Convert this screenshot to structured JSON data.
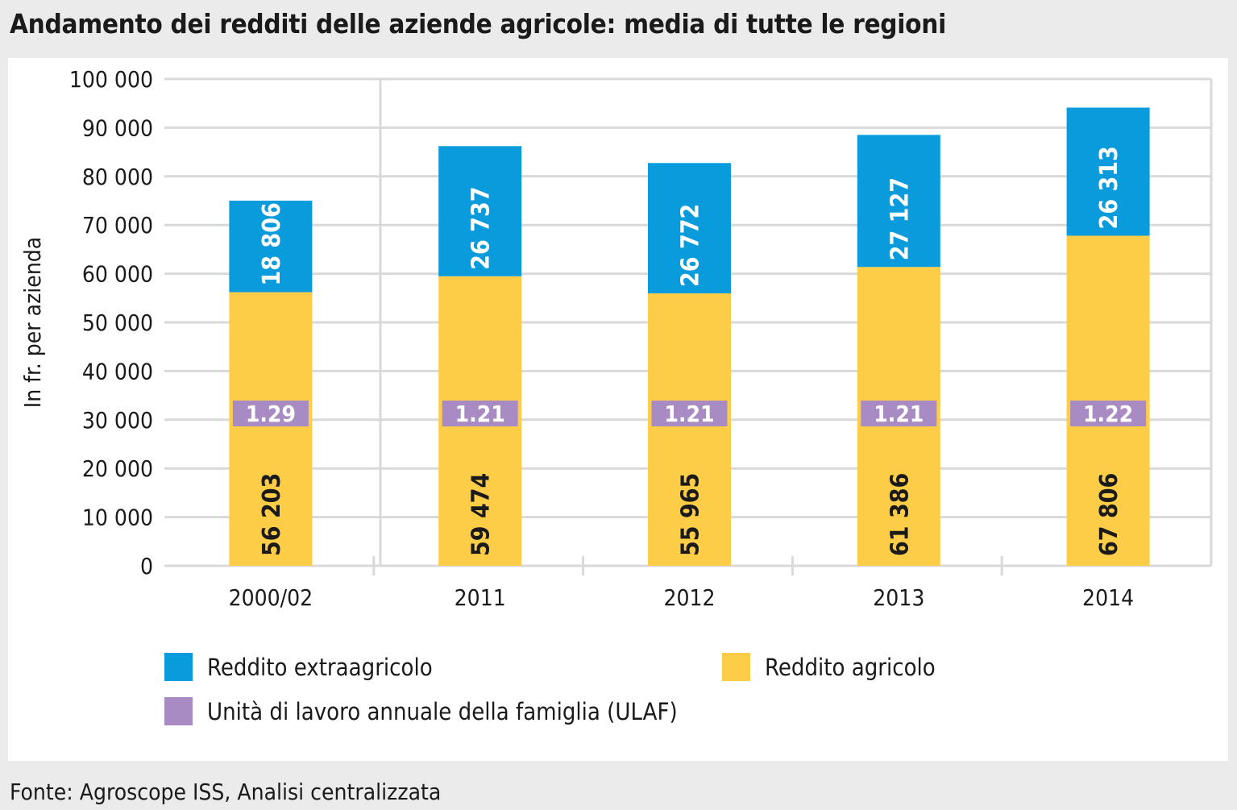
{
  "title": "Andamento dei redditi delle aziende agricole: media di tutte le regioni",
  "source": "Fonte: Agroscope ISS, Analisi centralizzata",
  "chart_data": {
    "type": "bar",
    "stacked": true,
    "title": "Andamento dei redditi delle aziende agricole: media di tutte le regioni",
    "xlabel": "",
    "ylabel": "In fr. per azienda",
    "ylim": [
      0,
      100000
    ],
    "yticks": [
      0,
      10000,
      20000,
      30000,
      40000,
      50000,
      60000,
      70000,
      80000,
      90000,
      100000
    ],
    "ytick_labels": [
      "0",
      "10 000",
      "20 000",
      "30 000",
      "40 000",
      "50 000",
      "60 000",
      "70 000",
      "80 000",
      "90 000",
      "100 000"
    ],
    "categories": [
      "2000/02",
      "2011",
      "2012",
      "2013",
      "2014"
    ],
    "series": [
      {
        "name": "Reddito agricolo",
        "color": "#fecd48",
        "values": [
          56203,
          59474,
          55965,
          61386,
          67806
        ],
        "labels": [
          "56 203",
          "59 474",
          "55 965",
          "61 386",
          "67 806"
        ]
      },
      {
        "name": "Reddito extraagricolo",
        "color": "#0a9bdc",
        "values": [
          18806,
          26737,
          26772,
          27127,
          26313
        ],
        "labels": [
          "18 806",
          "26 737",
          "26 772",
          "27 127",
          "26 313"
        ]
      }
    ],
    "annotation_series": {
      "name": "Unità di lavoro annuale della famiglia (ULAF)",
      "color": "#a98bc4",
      "values": [
        1.29,
        1.21,
        1.21,
        1.21,
        1.22
      ],
      "labels": [
        "1.29",
        "1.21",
        "1.21",
        "1.21",
        "1.22"
      ]
    },
    "legend": [
      {
        "label": "Reddito extraagricolo",
        "color": "#0a9bdc"
      },
      {
        "label": "Reddito agricolo",
        "color": "#fecd48"
      },
      {
        "label": "Unità di lavoro annuale della famiglia (ULAF)",
        "color": "#a98bc4"
      }
    ],
    "grid": true,
    "legend_position": "bottom"
  }
}
